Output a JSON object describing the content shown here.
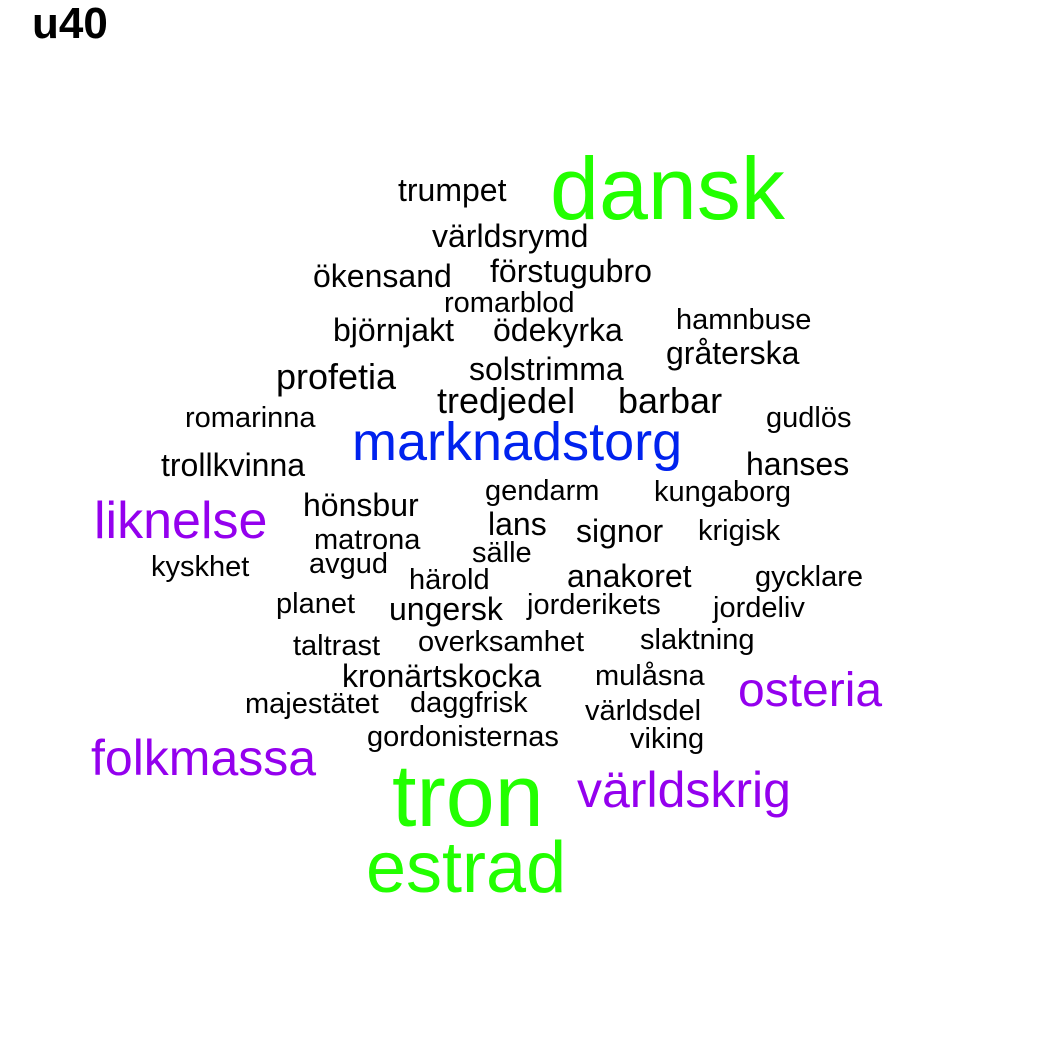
{
  "title": "u40",
  "colors": {
    "background": "#ffffff",
    "tier1": "#22ff00",
    "tier2": "#0022ee",
    "tier3": "#9400ee",
    "tier4": "#000000"
  },
  "words": [
    {
      "text": "dansk",
      "tier": 1
    },
    {
      "text": "tron",
      "tier": 1
    },
    {
      "text": "estrad",
      "tier": 1
    },
    {
      "text": "marknadstorg",
      "tier": 2
    },
    {
      "text": "liknelse",
      "tier": 3
    },
    {
      "text": "osteria",
      "tier": 3
    },
    {
      "text": "folkmassa",
      "tier": 3
    },
    {
      "text": "världskrig",
      "tier": 3
    },
    {
      "text": "trumpet",
      "tier": 4
    },
    {
      "text": "världsrymd",
      "tier": 4
    },
    {
      "text": "ökensand",
      "tier": 4
    },
    {
      "text": "förstugubro",
      "tier": 4
    },
    {
      "text": "romarblod",
      "tier": 4
    },
    {
      "text": "hamnbuse",
      "tier": 4
    },
    {
      "text": "björnjakt",
      "tier": 4
    },
    {
      "text": "ödekyrka",
      "tier": 4
    },
    {
      "text": "gråterska",
      "tier": 4
    },
    {
      "text": "profetia",
      "tier": 4
    },
    {
      "text": "solstrimma",
      "tier": 4
    },
    {
      "text": "tredjedel",
      "tier": 4
    },
    {
      "text": "barbar",
      "tier": 4
    },
    {
      "text": "romarinna",
      "tier": 4
    },
    {
      "text": "gudlös",
      "tier": 4
    },
    {
      "text": "trollkvinna",
      "tier": 4
    },
    {
      "text": "hanses",
      "tier": 4
    },
    {
      "text": "gendarm",
      "tier": 4
    },
    {
      "text": "kungaborg",
      "tier": 4
    },
    {
      "text": "hönsbur",
      "tier": 4
    },
    {
      "text": "lans",
      "tier": 4
    },
    {
      "text": "signor",
      "tier": 4
    },
    {
      "text": "krigisk",
      "tier": 4
    },
    {
      "text": "matrona",
      "tier": 4
    },
    {
      "text": "sälle",
      "tier": 4
    },
    {
      "text": "kyskhet",
      "tier": 4
    },
    {
      "text": "avgud",
      "tier": 4
    },
    {
      "text": "härold",
      "tier": 4
    },
    {
      "text": "anakoret",
      "tier": 4
    },
    {
      "text": "gycklare",
      "tier": 4
    },
    {
      "text": "planet",
      "tier": 4
    },
    {
      "text": "ungersk",
      "tier": 4
    },
    {
      "text": "jorderikets",
      "tier": 4
    },
    {
      "text": "jordeliv",
      "tier": 4
    },
    {
      "text": "taltrast",
      "tier": 4
    },
    {
      "text": "overksamhet",
      "tier": 4
    },
    {
      "text": "slaktning",
      "tier": 4
    },
    {
      "text": "kronärtskocka",
      "tier": 4
    },
    {
      "text": "mulåsna",
      "tier": 4
    },
    {
      "text": "majestätet",
      "tier": 4
    },
    {
      "text": "daggfrisk",
      "tier": 4
    },
    {
      "text": "världsdel",
      "tier": 4
    },
    {
      "text": "gordonisternas",
      "tier": 4
    },
    {
      "text": "viking",
      "tier": 4
    }
  ]
}
